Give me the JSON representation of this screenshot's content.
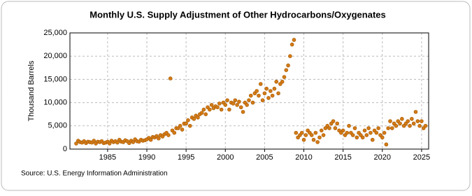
{
  "chart_data": {
    "type": "scatter",
    "title": "Monthly U.S. Supply Adjustment of Other Hydrocarbons/Oxygenates",
    "y_label": "Thousand Barrels",
    "source": "Source: U.S. Energy Information Administration",
    "color": "#d27a17",
    "grid": true,
    "xlim": [
      1980.2,
      2025.9
    ],
    "xticks": [
      1985,
      1990,
      1995,
      2000,
      2005,
      2010,
      2015,
      2020,
      2025
    ],
    "ylim": [
      0,
      25000
    ],
    "yticks": [
      0,
      {
        "value": 5000,
        "label": "5,000"
      },
      {
        "value": 10000,
        "label": "10,000"
      },
      {
        "value": 15000,
        "label": "15,000"
      },
      {
        "value": 20000,
        "label": "20,000"
      },
      {
        "value": 25000,
        "label": "25,000"
      }
    ],
    "x": [
      1981,
      1981.25,
      1981.5,
      1981.75,
      1982,
      1982.25,
      1982.5,
      1982.75,
      1983,
      1983.25,
      1983.5,
      1983.75,
      1984,
      1984.25,
      1984.5,
      1984.75,
      1985,
      1985.25,
      1985.5,
      1985.75,
      1986,
      1986.25,
      1986.5,
      1986.75,
      1987,
      1987.25,
      1987.5,
      1987.75,
      1988,
      1988.25,
      1988.5,
      1988.75,
      1989,
      1989.25,
      1989.5,
      1989.75,
      1990,
      1990.25,
      1990.5,
      1990.75,
      1991,
      1991.25,
      1991.5,
      1991.75,
      1992,
      1992.25,
      1992.5,
      1992.75,
      1993,
      1993.25,
      1993.5,
      1993.75,
      1994,
      1994.25,
      1994.5,
      1994.75,
      1995,
      1995.25,
      1995.5,
      1995.75,
      1996,
      1996.25,
      1996.5,
      1996.75,
      1997,
      1997.25,
      1997.5,
      1997.75,
      1998,
      1998.25,
      1998.5,
      1998.75,
      1999,
      1999.25,
      1999.5,
      1999.75,
      2000,
      2000.25,
      2000.5,
      2000.75,
      2001,
      2001.25,
      2001.5,
      2001.75,
      2002,
      2002.25,
      2002.5,
      2002.75,
      2003,
      2003.25,
      2003.5,
      2003.75,
      2004,
      2004.25,
      2004.5,
      2004.75,
      2005,
      2005.25,
      2005.5,
      2005.75,
      2006,
      2006.25,
      2006.5,
      2006.75,
      2007,
      2007.25,
      2007.5,
      2007.75,
      2008,
      2008.25,
      2008.5,
      2008.75,
      2009,
      2009.25,
      2009.5,
      2009.75,
      2010,
      2010.25,
      2010.5,
      2010.75,
      2011,
      2011.25,
      2011.5,
      2011.75,
      2012,
      2012.25,
      2012.5,
      2012.75,
      2013,
      2013.25,
      2013.5,
      2013.75,
      2014,
      2014.25,
      2014.5,
      2014.75,
      2015,
      2015.25,
      2015.5,
      2015.75,
      2016,
      2016.25,
      2016.5,
      2016.75,
      2017,
      2017.25,
      2017.5,
      2017.75,
      2018,
      2018.25,
      2018.5,
      2018.75,
      2019,
      2019.25,
      2019.5,
      2019.75,
      2020,
      2020.25,
      2020.5,
      2020.75,
      2021,
      2021.25,
      2021.5,
      2021.75,
      2022,
      2022.25,
      2022.5,
      2022.75,
      2023,
      2023.25,
      2023.5,
      2023.75,
      2024,
      2024.25,
      2024.5,
      2024.75,
      2025,
      2025.25,
      2025.5
    ],
    "values": [
      1200,
      1800,
      1500,
      1400,
      1700,
      1300,
      1600,
      1500,
      1400,
      1800,
      1200,
      1600,
      1500,
      1700,
      1300,
      1400,
      1600,
      1200,
      1800,
      1500,
      1700,
      1400,
      2000,
      1600,
      1500,
      1900,
      1700,
      1300,
      1800,
      1500,
      2100,
      1700,
      1600,
      2000,
      1800,
      1900,
      2100,
      2400,
      2000,
      2600,
      2500,
      2800,
      2300,
      3000,
      2700,
      3200,
      3500,
      3000,
      15200,
      4000,
      3500,
      4500,
      4500,
      5000,
      4200,
      5500,
      5500,
      6200,
      5000,
      6800,
      6500,
      7200,
      6800,
      7500,
      7800,
      8500,
      7500,
      9000,
      8500,
      9500,
      8800,
      9200,
      9000,
      9800,
      8500,
      10000,
      9500,
      10500,
      8500,
      10000,
      9800,
      10500,
      9500,
      10200,
      9000,
      8000,
      10000,
      9500,
      10500,
      11500,
      10000,
      12000,
      12500,
      11500,
      14000,
      10500,
      12000,
      13000,
      11000,
      12500,
      11500,
      13000,
      14500,
      12000,
      14000,
      14500,
      15500,
      17000,
      18000,
      20000,
      22500,
      23500,
      3500,
      2500,
      3000,
      3500,
      2000,
      3000,
      4000,
      3500,
      3000,
      2000,
      3500,
      1500,
      2500,
      4000,
      3000,
      4500,
      5000,
      4500,
      5500,
      6000,
      4500,
      5500,
      4000,
      3500,
      4000,
      3000,
      3500,
      5000,
      3500,
      3000,
      4500,
      2500,
      3500,
      3000,
      2500,
      4000,
      3000,
      4500,
      3500,
      2000,
      4000,
      3500,
      4500,
      3000,
      2500,
      3500,
      1000,
      4500,
      6000,
      4500,
      5500,
      5000,
      6000,
      5500,
      6500,
      5000,
      5500,
      6000,
      5000,
      6500,
      5500,
      8000,
      6000,
      5000,
      6000,
      4500,
      5000
    ]
  }
}
